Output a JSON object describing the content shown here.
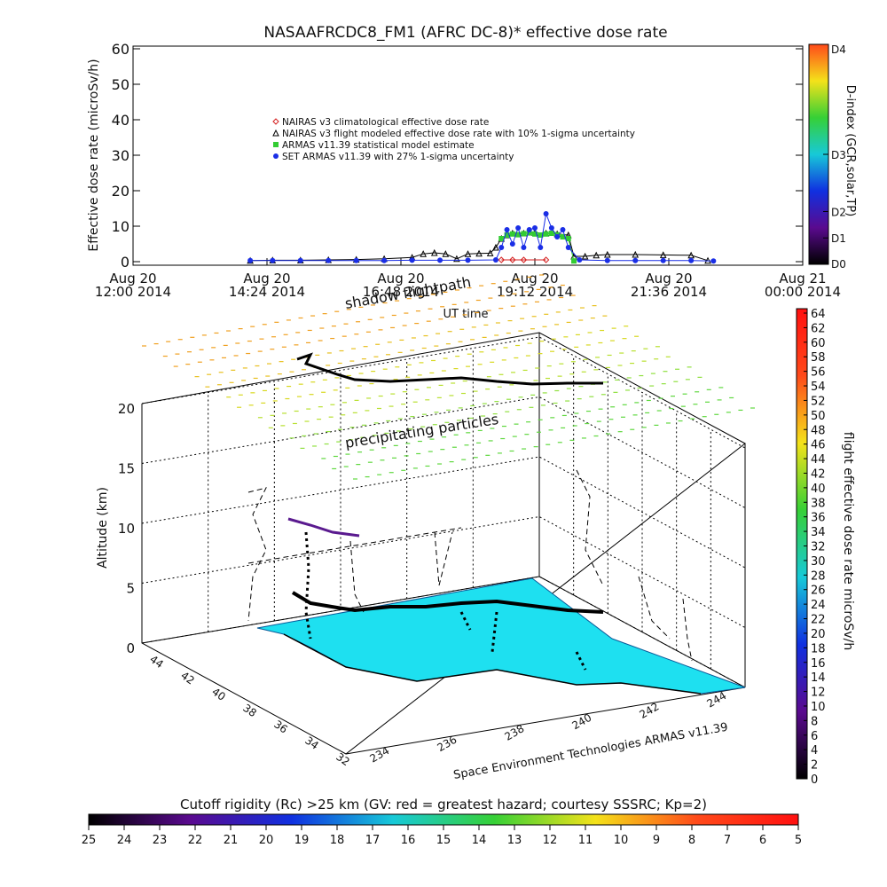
{
  "chart_data": [
    {
      "type": "scatter",
      "title": "NASAAFRCDC8_FM1 (AFRC DC-8)* effective dose rate",
      "ylabel": "Effective dose rate (microSv/h)",
      "xlabel": "UT time",
      "ylim": [
        0,
        60
      ],
      "yticks": [
        "0",
        "10",
        "20",
        "30",
        "40",
        "50",
        "60"
      ],
      "xticks": [
        {
          "l1": "Aug 20",
          "l2": "12:00 2014",
          "hour": 0
        },
        {
          "l1": "Aug 20",
          "l2": "14:24 2014",
          "hour": 2.4
        },
        {
          "l1": "Aug 20",
          "l2": "16:48 2014",
          "hour": 4.8
        },
        {
          "l1": "Aug 20",
          "l2": "19:12 2014",
          "hour": 7.2
        },
        {
          "l1": "Aug 20",
          "l2": "21:36 2014",
          "hour": 9.6
        },
        {
          "l1": "Aug 21",
          "l2": "00:00 2014",
          "hour": 12
        }
      ],
      "xrange_hours": [
        0,
        12
      ],
      "legend_position": "upper-center",
      "series": [
        {
          "name": "NAIRAS v3 climatological effective dose rate",
          "marker": "diamond",
          "color": "#d42020",
          "x": [
            6.6,
            6.8,
            7.0,
            7.4
          ],
          "y": [
            0.5,
            0.5,
            0.5,
            0.5
          ]
        },
        {
          "name": "NAIRAS v3 flight modeled effective dose rate with 10% 1-sigma uncertainty",
          "marker": "triangle",
          "color": "#000000",
          "x": [
            2.1,
            2.5,
            3.0,
            3.5,
            4.0,
            4.5,
            5.0,
            5.2,
            5.4,
            5.6,
            5.8,
            6.0,
            6.2,
            6.4,
            6.5,
            6.6,
            6.7,
            6.8,
            7.0,
            7.2,
            7.4,
            7.6,
            7.8,
            7.9,
            8.1,
            8.3,
            8.5,
            9.0,
            9.5,
            10.0,
            10.3
          ],
          "y": [
            0.3,
            0.4,
            0.4,
            0.5,
            0.6,
            0.8,
            1.2,
            2.2,
            2.5,
            2.2,
            0.8,
            2.2,
            2.3,
            2.4,
            4.0,
            6.5,
            7.5,
            8.0,
            8.0,
            8.2,
            8.0,
            7.8,
            7.5,
            1.5,
            1.5,
            1.8,
            2.0,
            2.0,
            1.9,
            1.8,
            0.3
          ]
        },
        {
          "name": "ARMAS v11.39 statistical model estimate",
          "marker": "square",
          "color": "#33cc33",
          "x": [
            6.6,
            6.7,
            6.8,
            6.9,
            7.0,
            7.1,
            7.2,
            7.3,
            7.4,
            7.5,
            7.6,
            7.7,
            7.8,
            7.9
          ],
          "y": [
            6.5,
            7.5,
            7.8,
            7.6,
            7.9,
            8.1,
            7.8,
            7.5,
            7.8,
            8.0,
            7.6,
            7.0,
            6.5,
            0.2
          ]
        },
        {
          "name": "SET ARMAS v11.39 with 27% 1-sigma uncertainty",
          "marker": "circle",
          "color": "#1a2ee6",
          "x": [
            2.1,
            2.5,
            3.0,
            3.5,
            4.0,
            4.5,
            5.0,
            5.5,
            6.0,
            6.5,
            6.6,
            6.7,
            6.8,
            6.9,
            7.0,
            7.1,
            7.2,
            7.3,
            7.4,
            7.5,
            7.6,
            7.7,
            7.8,
            8.0,
            8.5,
            9.0,
            9.5,
            10.0,
            10.4
          ],
          "y": [
            0.3,
            0.3,
            0.3,
            0.3,
            0.3,
            0.3,
            0.4,
            0.4,
            0.4,
            0.5,
            4.0,
            9.0,
            5.0,
            9.5,
            4.0,
            9.0,
            9.5,
            4.0,
            13.5,
            9.5,
            7.0,
            9.0,
            4.0,
            0.5,
            0.3,
            0.3,
            0.3,
            0.3,
            0.2
          ]
        }
      ]
    },
    {
      "type": "colorbar",
      "ylabel": "D-index (GCR,solar,TP)",
      "ticks": [
        "D0",
        "D1",
        "D2",
        "D3",
        "D4"
      ],
      "tick_fraction": [
        0,
        0.12,
        0.24,
        0.5,
        1
      ],
      "gradient": [
        "#000000",
        "#5a0a8f",
        "#1030e0",
        "#17c9d8",
        "#36d036",
        "#f4e21a",
        "#ff4a1a"
      ]
    },
    {
      "type": "3d-scatter",
      "zlabel": "Altitude (km)",
      "zticks": [
        "0",
        "5",
        "10",
        "15",
        "20"
      ],
      "ylat_ticks": [
        "44",
        "42",
        "40",
        "38",
        "36",
        "34",
        "32"
      ],
      "xlon_ticks": [
        "234",
        "236",
        "238",
        "240",
        "242",
        "244"
      ],
      "annotations": {
        "shadow": "shadow flightpath",
        "precip": "precipitating particles",
        "credit": "Space Environment Technologies ARMAS v11.39"
      },
      "map_color": "#1ee0f0"
    },
    {
      "type": "colorbar",
      "ylabel": "flight effective dose rate microSv/h",
      "range": [
        0,
        64
      ],
      "ticks": [
        "0",
        "2",
        "4",
        "6",
        "8",
        "10",
        "12",
        "14",
        "16",
        "18",
        "20",
        "22",
        "24",
        "26",
        "28",
        "30",
        "32",
        "34",
        "36",
        "38",
        "40",
        "42",
        "44",
        "46",
        "48",
        "50",
        "52",
        "54",
        "56",
        "58",
        "60",
        "62",
        "64"
      ],
      "gradient": [
        "#000000",
        "#5a0a8f",
        "#1030e0",
        "#17c9d8",
        "#36d036",
        "#f4e21a",
        "#ff4a1a",
        "#ff1010"
      ]
    },
    {
      "type": "colorbar",
      "title": "Cutoff rigidity (Rc) >25 km (GV: red = greatest hazard; courtesy SSSRC; Kp=2)",
      "ticks": [
        "25",
        "24",
        "23",
        "22",
        "21",
        "20",
        "19",
        "18",
        "17",
        "16",
        "15",
        "14",
        "13",
        "12",
        "11",
        "10",
        "9",
        "8",
        "7",
        "6",
        "5"
      ],
      "gradient": [
        "#000000",
        "#5a0a8f",
        "#1030e0",
        "#17c9d8",
        "#36d036",
        "#f4e21a",
        "#ff4a1a",
        "#ff1010"
      ]
    }
  ]
}
